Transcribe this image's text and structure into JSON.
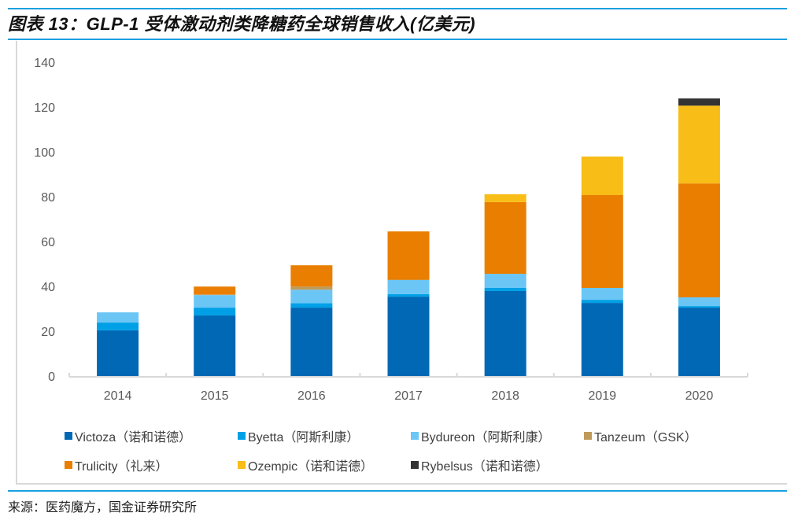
{
  "header": {
    "title": "图表 13：GLP-1 受体激动剂类降糖药全球销售收入(亿美元)"
  },
  "footer": {
    "source": "来源：医药魔方，国金证券研究所"
  },
  "chart_data": {
    "type": "bar",
    "stacked": true,
    "title": "GLP-1 受体激动剂类降糖药全球销售收入(亿美元)",
    "xlabel": "",
    "ylabel": "",
    "ylim": [
      0,
      140
    ],
    "yticks": [
      0,
      20,
      40,
      60,
      80,
      100,
      120,
      140
    ],
    "grid": false,
    "legend_position": "bottom",
    "categories": [
      "2014",
      "2015",
      "2016",
      "2017",
      "2018",
      "2019",
      "2020"
    ],
    "series": [
      {
        "name": "Victoza（诺和诺德）",
        "color": "#0068b5",
        "values": [
          20.4,
          27.0,
          30.5,
          35.4,
          37.9,
          32.6,
          30.5
        ]
      },
      {
        "name": "Byetta（阿斯利康）",
        "color": "#00a0e6",
        "values": [
          3.5,
          3.5,
          2.0,
          1.1,
          1.4,
          1.4,
          0.7
        ]
      },
      {
        "name": "Bydureon（阿斯利康）",
        "color": "#6bc6f5",
        "values": [
          4.5,
          5.6,
          6.0,
          6.3,
          6.3,
          5.3,
          3.9
        ]
      },
      {
        "name": "Tanzeum（GSK）",
        "color": "#bf9b5a",
        "values": [
          0,
          0.3,
          1.4,
          0.2,
          0,
          0,
          0
        ]
      },
      {
        "name": "Trulicity（礼来）",
        "color": "#e97e00",
        "values": [
          0,
          3.5,
          9.5,
          21.5,
          32.0,
          41.4,
          50.8
        ]
      },
      {
        "name": "Ozempic（诺和诺德）",
        "color": "#f8bd16",
        "values": [
          0,
          0,
          0,
          0,
          3.5,
          17.2,
          34.7
        ]
      },
      {
        "name": "Rybelsus（诺和诺德）",
        "color": "#333333",
        "values": [
          0,
          0,
          0,
          0,
          0,
          0,
          3.2
        ]
      }
    ]
  }
}
